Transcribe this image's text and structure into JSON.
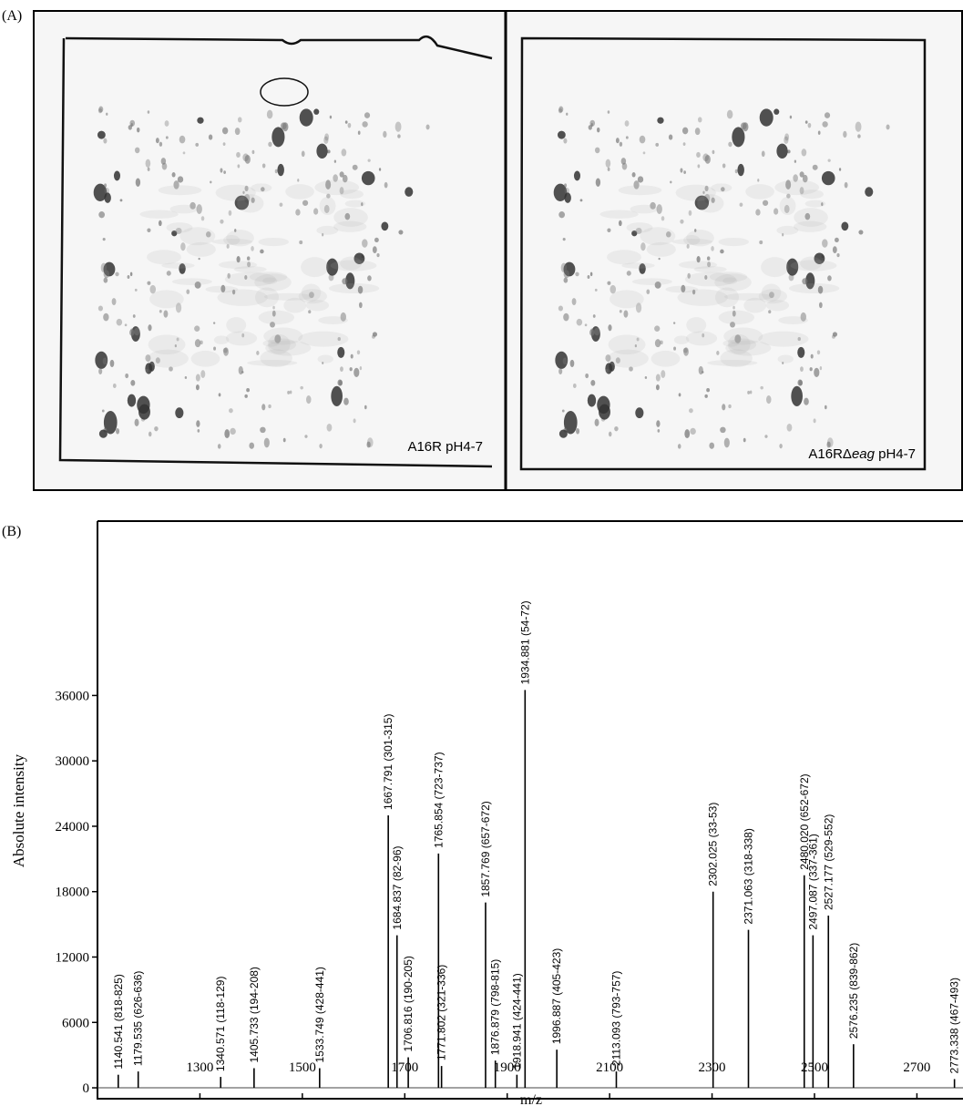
{
  "panel_a": {
    "label": "(A)",
    "gels": [
      {
        "caption": "A16R pH4-7"
      },
      {
        "caption_prefix": "A16RΔ",
        "caption_italic": "eag",
        "caption_suffix": " pH4-7"
      }
    ]
  },
  "chart_data": {
    "type": "stem",
    "panel_label": "(B)",
    "x_label": "m/z",
    "y_label": "Absolute intensity",
    "x": [
      1140.541,
      1179.535,
      1340.571,
      1405.733,
      1533.749,
      1667.791,
      1684.837,
      1706.816,
      1765.854,
      1771.802,
      1857.769,
      1876.879,
      1918.941,
      1934.881,
      1996.887,
      2113.093,
      2302.025,
      2371.063,
      2480.02,
      2497.087,
      2527.177,
      2576.235,
      2773.338
    ],
    "values": [
      1200,
      1500,
      1000,
      1800,
      1800,
      25000,
      14000,
      2800,
      21500,
      2000,
      17000,
      2500,
      1200,
      36500,
      3500,
      1500,
      18000,
      14500,
      19500,
      14000,
      15800,
      4000,
      800
    ],
    "labels": [
      "1140.541 (818-825)",
      "1179.535 (626-636)",
      "1340.571 (118-129)",
      "1405.733 (194-208)",
      "1533.749 (428-441)",
      "1667.791 (301-315)",
      "1684.837 (82-96)",
      "1706.816 (190-205)",
      "1765.854 (723-737)",
      "1771.802 (321-336)",
      "1857.769 (657-672)",
      "1876.879 (798-815)",
      "1918.941 (424-441)",
      "1934.881 (54-72)",
      "1996.887 (405-423)",
      "2113.093 (793-757)",
      "2302.025 (33-53)",
      "2371.063 (318-338)",
      "2480.020 (652-672)",
      "2497.087 (337-361)",
      "2527.177 (529-552)",
      "2576.235 (839-862)",
      "2773.338 (467-493)"
    ],
    "color": "#000000",
    "xlim": [
      1100,
      2790
    ],
    "xticks": [
      1300,
      1500,
      1700,
      1900,
      2100,
      2300,
      2500,
      2700
    ],
    "ylim": [
      -1000,
      52000
    ],
    "yticks": [
      0,
      6000,
      12000,
      18000,
      24000,
      30000,
      36000
    ]
  }
}
